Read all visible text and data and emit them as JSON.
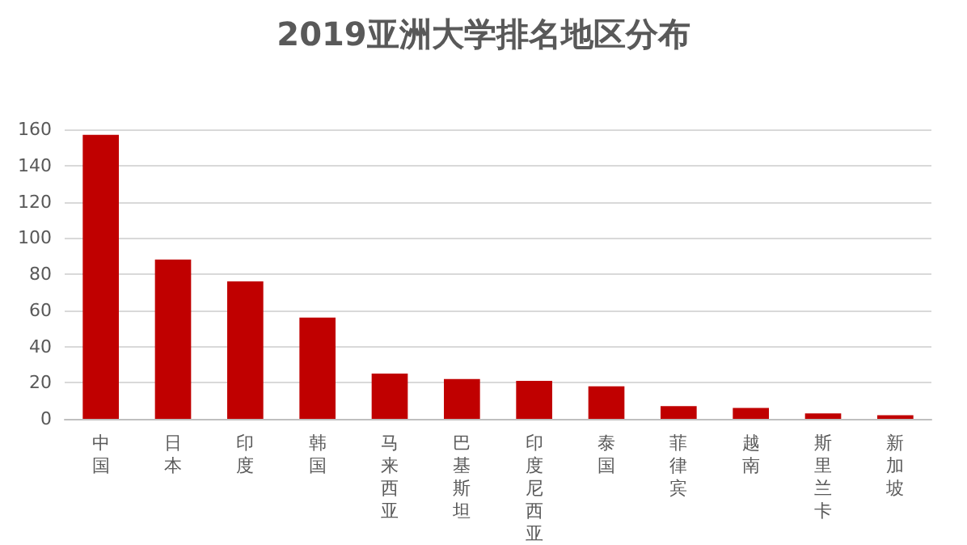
{
  "chart_data": {
    "type": "bar",
    "title": "2019亚洲大学排名地区分布",
    "categories": [
      "中国",
      "日本",
      "印度",
      "韩国",
      "马来西亚",
      "巴基斯坦",
      "印度尼西亚",
      "泰国",
      "菲律宾",
      "越南",
      "斯里兰卡",
      "新加坡"
    ],
    "values": [
      157,
      88,
      76,
      56,
      25,
      22,
      21,
      18,
      7,
      6,
      3,
      2
    ],
    "color": "#c00000",
    "ylim": [
      0,
      160
    ],
    "yticks": [
      0,
      20,
      40,
      60,
      80,
      100,
      120,
      140,
      160
    ],
    "grid": "y"
  }
}
